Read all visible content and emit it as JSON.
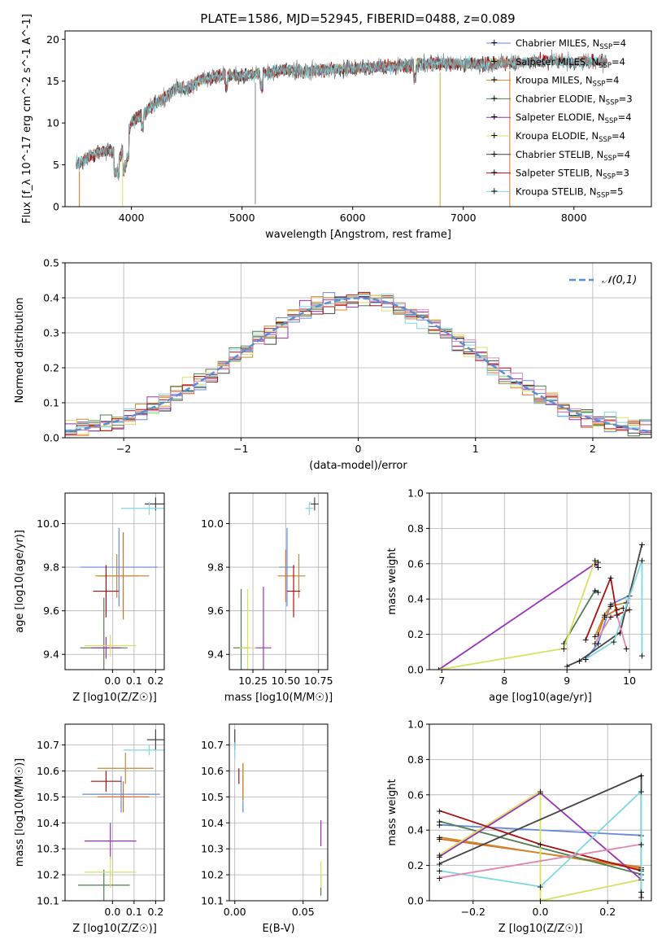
{
  "figure": {
    "title": "PLATE=1586, MJD=52945, FIBERID=0488, z=0.089"
  },
  "colors": {
    "Chabrier MILES": "#6688dd",
    "Salpeter MILES": "#e07020",
    "Kroupa MILES": "#c88a30",
    "Chabrier ELODIE": "#4f7f4f",
    "Salpeter ELODIE": "#9a30b8",
    "Kroupa ELODIE": "#d8e060",
    "Chabrier STELIB": "#444444",
    "Salpeter STELIB": "#aa1111",
    "Kroupa STELIB": "#7fd8e0",
    "data": "#888888"
  },
  "legend_entries": [
    {
      "name": "Chabrier MILES, N",
      "sub": "SSP",
      "n": "=4"
    },
    {
      "name": "Salpeter MILES, N",
      "sub": "SSP",
      "n": "=4"
    },
    {
      "name": "Kroupa MILES, N",
      "sub": "SSP",
      "n": "=4"
    },
    {
      "name": "Chabrier ELODIE, N",
      "sub": "SSP",
      "n": "=3"
    },
    {
      "name": "Salpeter ELODIE, N",
      "sub": "SSP",
      "n": "=4"
    },
    {
      "name": "Kroupa ELODIE, N",
      "sub": "SSP",
      "n": "=4"
    },
    {
      "name": "Chabrier STELIB, N",
      "sub": "SSP",
      "n": "=4"
    },
    {
      "name": "Salpeter STELIB, N",
      "sub": "SSP",
      "n": "=3"
    },
    {
      "name": "Kroupa STELIB, N",
      "sub": "SSP",
      "n": "=5"
    }
  ],
  "chart_data": [
    {
      "id": "spectrum",
      "type": "line",
      "title": "PLATE=1586, MJD=52945, FIBERID=0488, z=0.089",
      "xlabel": "wavelength [Angstrom, rest frame]",
      "ylabel": "Flux [f_λ 10^-17 erg cm^-2 s^-1 A^-1]",
      "xlim": [
        3400,
        8700
      ],
      "ylim": [
        0,
        21
      ],
      "xticks": [
        4000,
        5000,
        6000,
        7000,
        8000
      ],
      "yticks": [
        0,
        5,
        10,
        15,
        20
      ],
      "grid": false,
      "legend": "right",
      "continuum": {
        "x": [
          3500,
          3600,
          3700,
          3800,
          3900,
          4000,
          4100,
          4200,
          4300,
          4400,
          4500,
          4600,
          4800,
          5000,
          5200,
          5400,
          5600,
          5800,
          6000,
          6200,
          6400,
          6600,
          6800,
          7000,
          7200,
          7400,
          7600,
          7800,
          8000,
          8200,
          8300
        ],
        "y": [
          5.0,
          5.8,
          6.5,
          6.8,
          6.0,
          10.2,
          11.0,
          12.2,
          13.0,
          14.2,
          14.0,
          15.0,
          15.7,
          15.6,
          16.0,
          16.3,
          16.2,
          16.4,
          16.5,
          16.7,
          16.8,
          17.0,
          17.1,
          17.1,
          17.0,
          17.2,
          17.3,
          17.4,
          17.2,
          17.4,
          17.3
        ]
      }
    },
    {
      "id": "residuals",
      "type": "line",
      "xlabel": "(data-model)/error",
      "ylabel": "Normed distribution",
      "xlim": [
        -2.5,
        2.5
      ],
      "ylim": [
        0,
        0.5
      ],
      "xticks": [
        -2,
        -1,
        0,
        1,
        2
      ],
      "yticks": [
        0.0,
        0.1,
        0.2,
        0.3,
        0.4,
        0.5
      ],
      "grid": true,
      "legend": "top-right",
      "series": [
        {
          "name": "𝒩(0,1)",
          "mu": 0,
          "sigma": 1
        }
      ]
    },
    {
      "id": "age-vs-Z",
      "type": "scatter",
      "xlabel": "Z [log10(Z/Z☉)]",
      "ylabel": "age  [log10(age/yr)]",
      "xlim": [
        -0.22,
        0.24
      ],
      "ylim": [
        9.33,
        10.14
      ],
      "xticks": [
        0.0,
        0.1,
        0.2
      ],
      "yticks": [
        9.4,
        9.6,
        9.8,
        10.0
      ],
      "grid": true,
      "points": [
        {
          "model": "Chabrier MILES",
          "x": 0.03,
          "y": 9.8,
          "xerr": 0.18,
          "yerr": 0.18
        },
        {
          "model": "Salpeter MILES",
          "x": 0.05,
          "y": 9.76,
          "xerr": 0.12,
          "yerr": 0.2
        },
        {
          "model": "Kroupa MILES",
          "x": 0.02,
          "y": 9.76,
          "xerr": 0.1,
          "yerr": 0.1
        },
        {
          "model": "Chabrier ELODIE",
          "x": -0.04,
          "y": 9.43,
          "xerr": 0.11,
          "yerr": 0.23
        },
        {
          "model": "Salpeter ELODIE",
          "x": -0.03,
          "y": 9.43,
          "xerr": 0.07,
          "yerr": 0.05
        },
        {
          "model": "Kroupa ELODIE",
          "x": -0.01,
          "y": 9.44,
          "xerr": 0.12,
          "yerr": 0.05
        },
        {
          "model": "Chabrier STELIB",
          "x": 0.2,
          "y": 10.09,
          "xerr": 0.05,
          "yerr": 0.03
        },
        {
          "model": "Salpeter STELIB",
          "x": -0.03,
          "y": 9.69,
          "xerr": 0.06,
          "yerr": 0.12
        },
        {
          "model": "Kroupa STELIB",
          "x": 0.17,
          "y": 10.07,
          "xerr": 0.13,
          "yerr": 0.03
        }
      ]
    },
    {
      "id": "age-vs-mass",
      "type": "scatter",
      "xlabel": "mass [log10(M/M☉)]",
      "ylabel": "",
      "xlim": [
        10.07,
        10.82
      ],
      "ylim": [
        9.33,
        10.14
      ],
      "xticks": [
        10.25,
        10.5,
        10.75
      ],
      "yticks": [
        9.4,
        9.6,
        9.8,
        10.0
      ],
      "grid": true,
      "points": [
        {
          "model": "Chabrier MILES",
          "x": 10.51,
          "y": 9.8,
          "xerr": 0.06,
          "yerr": 0.18
        },
        {
          "model": "Salpeter MILES",
          "x": 10.5,
          "y": 9.76,
          "xerr": 0.06,
          "yerr": 0.12
        },
        {
          "model": "Kroupa MILES",
          "x": 10.6,
          "y": 9.76,
          "xerr": 0.05,
          "yerr": 0.1
        },
        {
          "model": "Chabrier ELODIE",
          "x": 10.16,
          "y": 9.43,
          "xerr": 0.06,
          "yerr": 0.27
        },
        {
          "model": "Salpeter ELODIE",
          "x": 10.33,
          "y": 9.43,
          "xerr": 0.06,
          "yerr": 0.28
        },
        {
          "model": "Kroupa ELODIE",
          "x": 10.21,
          "y": 9.43,
          "xerr": 0.06,
          "yerr": 0.27
        },
        {
          "model": "Chabrier STELIB",
          "x": 10.72,
          "y": 10.09,
          "xerr": 0.03,
          "yerr": 0.03
        },
        {
          "model": "Salpeter STELIB",
          "x": 10.56,
          "y": 9.69,
          "xerr": 0.05,
          "yerr": 0.12
        },
        {
          "model": "Kroupa STELIB",
          "x": 10.68,
          "y": 10.07,
          "xerr": 0.03,
          "yerr": 0.03
        }
      ]
    },
    {
      "id": "weight-vs-age",
      "type": "line",
      "xlabel": "age  [log10(age/yr)]",
      "ylabel": "mass weight",
      "xlim": [
        6.8,
        10.35
      ],
      "ylim": [
        0.0,
        1.0
      ],
      "xticks": [
        7,
        8,
        9,
        10
      ],
      "yticks": [
        0.0,
        0.2,
        0.4,
        0.6,
        0.8,
        1.0
      ],
      "grid": true,
      "series": [
        {
          "model": "Chabrier MILES",
          "x": [
            9.3,
            9.5,
            9.7,
            10.0
          ],
          "y": [
            0.06,
            0.15,
            0.37,
            0.42
          ]
        },
        {
          "model": "Salpeter MILES",
          "x": [
            9.5,
            9.6,
            9.8,
            9.9
          ],
          "y": [
            0.2,
            0.3,
            0.34,
            0.35
          ]
        },
        {
          "model": "Kroupa MILES",
          "x": [
            9.45,
            9.6,
            9.7,
            9.95
          ],
          "y": [
            0.19,
            0.31,
            0.36,
            0.38
          ]
        },
        {
          "model": "Chabrier ELODIE",
          "x": [
            8.95,
            9.45,
            9.5
          ],
          "y": [
            0.15,
            0.45,
            0.44
          ]
        },
        {
          "model": "Salpeter ELODIE",
          "x": [
            6.95,
            9.45,
            9.5
          ],
          "y": [
            0.0,
            0.6,
            0.58
          ]
        },
        {
          "model": "Kroupa ELODIE",
          "x": [
            6.95,
            8.95,
            9.45,
            9.5
          ],
          "y": [
            0.0,
            0.12,
            0.62,
            0.61
          ]
        },
        {
          "model": "Chabrier STELIB",
          "x": [
            9.0,
            9.2,
            9.85,
            10.2
          ],
          "y": [
            0.02,
            0.05,
            0.21,
            0.71
          ]
        },
        {
          "model": "Salpeter STELIB",
          "x": [
            9.3,
            9.7,
            9.8,
            10.0
          ],
          "y": [
            0.17,
            0.52,
            0.31,
            0.34
          ]
        },
        {
          "model": "Kroupa STELIB",
          "x": [
            9.3,
            9.75,
            10.2,
            10.2
          ],
          "y": [
            0.06,
            0.16,
            0.62,
            0.08
          ]
        },
        {
          "model": "pink",
          "x": [
            9.45,
            9.7,
            9.8,
            9.95
          ],
          "y": [
            0.15,
            0.3,
            0.31,
            0.12
          ]
        }
      ]
    },
    {
      "id": "mass-vs-Z",
      "type": "scatter",
      "xlabel": "Z [log10(Z/Z☉)]",
      "ylabel": "mass [log10(M/M☉)]",
      "xlim": [
        -0.22,
        0.24
      ],
      "ylim": [
        10.1,
        10.78
      ],
      "xticks": [
        0.0,
        0.1,
        0.2
      ],
      "yticks": [
        10.1,
        10.2,
        10.3,
        10.4,
        10.5,
        10.6,
        10.7
      ],
      "grid": true,
      "points": [
        {
          "model": "Chabrier MILES",
          "x": 0.04,
          "y": 10.51,
          "xerr": 0.18,
          "yerr": 0.07
        },
        {
          "model": "Salpeter MILES",
          "x": 0.05,
          "y": 10.5,
          "xerr": 0.12,
          "yerr": 0.06
        },
        {
          "model": "Kroupa MILES",
          "x": 0.06,
          "y": 10.61,
          "xerr": 0.13,
          "yerr": 0.06
        },
        {
          "model": "Chabrier ELODIE",
          "x": -0.04,
          "y": 10.16,
          "xerr": 0.12,
          "yerr": 0.06
        },
        {
          "model": "Salpeter ELODIE",
          "x": -0.01,
          "y": 10.33,
          "xerr": 0.12,
          "yerr": 0.07
        },
        {
          "model": "Kroupa ELODIE",
          "x": -0.01,
          "y": 10.21,
          "xerr": 0.12,
          "yerr": 0.06
        },
        {
          "model": "Chabrier STELIB",
          "x": 0.2,
          "y": 10.72,
          "xerr": 0.04,
          "yerr": 0.04
        },
        {
          "model": "Salpeter STELIB",
          "x": -0.03,
          "y": 10.56,
          "xerr": 0.07,
          "yerr": 0.04
        },
        {
          "model": "Kroupa STELIB",
          "x": 0.17,
          "y": 10.68,
          "xerr": 0.12,
          "yerr": 0.02
        }
      ]
    },
    {
      "id": "mass-vs-EBV",
      "type": "scatter",
      "xlabel": "E(B-V)",
      "ylabel": "",
      "xlim": [
        -0.004,
        0.068
      ],
      "ylim": [
        10.1,
        10.78
      ],
      "xticks": [
        0.0,
        0.05
      ],
      "yticks": [
        10.1,
        10.2,
        10.3,
        10.4,
        10.5,
        10.6,
        10.7
      ],
      "grid": true,
      "points": [
        {
          "model": "Chabrier MILES",
          "x": 0.006,
          "y": 10.51,
          "xerr": 0.0,
          "yerr": 0.07
        },
        {
          "model": "Salpeter MILES",
          "x": 0.006,
          "y": 10.56,
          "xerr": 0.0,
          "yerr": 0.07
        },
        {
          "model": "Kroupa MILES",
          "x": 0.006,
          "y": 10.56,
          "xerr": 0.0,
          "yerr": 0.07
        },
        {
          "model": "Chabrier ELODIE",
          "x": 0.063,
          "y": 10.16,
          "xerr": 0.0,
          "yerr": 0.04
        },
        {
          "model": "Salpeter ELODIE",
          "x": 0.063,
          "y": 10.36,
          "xerr": 0.0,
          "yerr": 0.05
        },
        {
          "model": "Kroupa ELODIE",
          "x": 0.063,
          "y": 10.2,
          "xerr": 0.0,
          "yerr": 0.05
        },
        {
          "model": "Chabrier STELIB",
          "x": 0.0,
          "y": 10.72,
          "xerr": 0.0,
          "yerr": 0.04
        },
        {
          "model": "Salpeter STELIB",
          "x": 0.003,
          "y": 10.58,
          "xerr": 0.0,
          "yerr": 0.03
        },
        {
          "model": "Kroupa STELIB",
          "x": 0.0,
          "y": 10.68,
          "xerr": 0.0,
          "yerr": 0.03
        }
      ]
    },
    {
      "id": "weight-vs-Z",
      "type": "line",
      "xlabel": "Z [log10(Z/Z☉)]",
      "ylabel": "mass weight",
      "xlim": [
        -0.33,
        0.33
      ],
      "ylim": [
        0.0,
        1.0
      ],
      "xticks": [
        -0.2,
        0.0,
        0.2
      ],
      "yticks": [
        0.0,
        0.2,
        0.4,
        0.6,
        0.8,
        1.0
      ],
      "grid": true,
      "series": [
        {
          "model": "Chabrier MILES",
          "x": [
            -0.3,
            0.3
          ],
          "y": [
            0.43,
            0.37
          ]
        },
        {
          "model": "Salpeter MILES",
          "x": [
            -0.3,
            0.3
          ],
          "y": [
            0.35,
            0.19
          ]
        },
        {
          "model": "Kroupa MILES",
          "x": [
            -0.3,
            0.3
          ],
          "y": [
            0.36,
            0.18
          ]
        },
        {
          "model": "Chabrier ELODIE",
          "x": [
            -0.3,
            0.3,
            0.3
          ],
          "y": [
            0.45,
            0.15,
            0.12
          ]
        },
        {
          "model": "Salpeter ELODIE",
          "x": [
            -0.3,
            0.0,
            0.3
          ],
          "y": [
            0.25,
            0.61,
            0.12
          ]
        },
        {
          "model": "Kroupa ELODIE",
          "x": [
            -0.3,
            0.0,
            0.0,
            0.3
          ],
          "y": [
            0.26,
            0.62,
            0.0,
            0.12
          ]
        },
        {
          "model": "Chabrier STELIB",
          "x": [
            -0.3,
            0.3,
            0.3
          ],
          "y": [
            0.21,
            0.71,
            0.02
          ]
        },
        {
          "model": "Salpeter STELIB",
          "x": [
            -0.3,
            0.0,
            0.3
          ],
          "y": [
            0.51,
            0.32,
            0.17
          ]
        },
        {
          "model": "Kroupa STELIB",
          "x": [
            -0.3,
            0.0,
            0.3,
            0.3
          ],
          "y": [
            0.17,
            0.08,
            0.62,
            0.05
          ]
        },
        {
          "model": "pink",
          "x": [
            -0.3,
            0.3
          ],
          "y": [
            0.13,
            0.32
          ]
        }
      ]
    }
  ]
}
